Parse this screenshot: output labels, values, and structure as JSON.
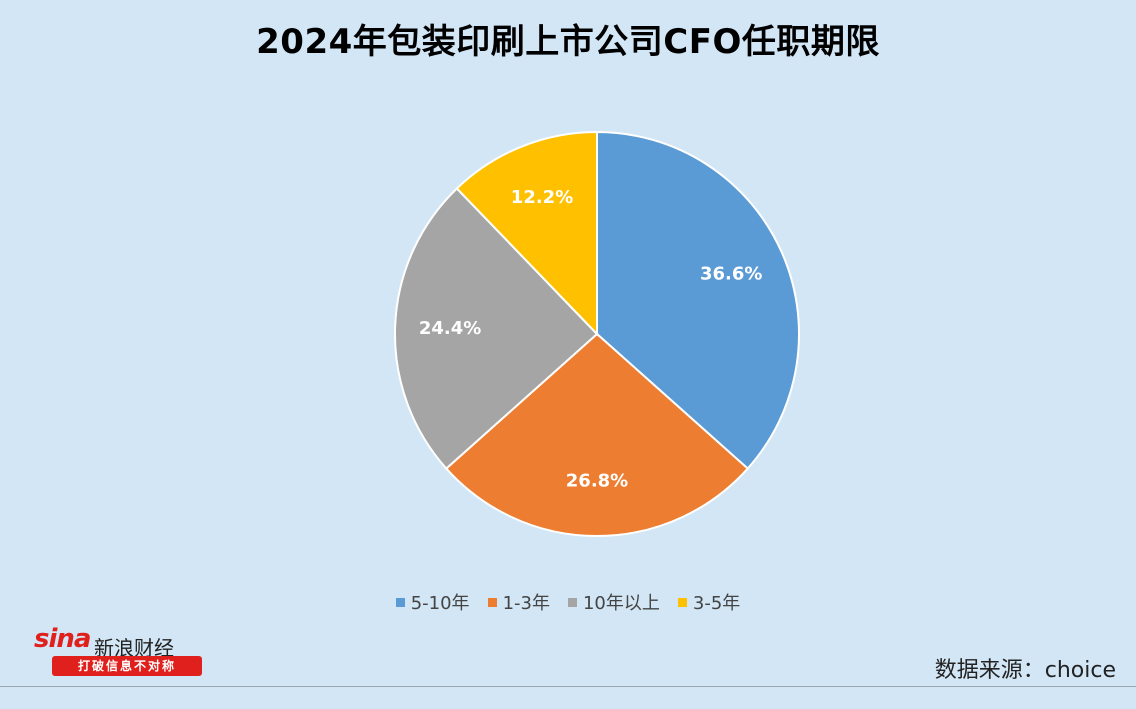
{
  "chart_data": {
    "type": "pie",
    "title": "2024年包装印刷上市公司CFO任职期限",
    "slices": [
      {
        "label": "5-10年",
        "value": 36.6,
        "display": "36.6%",
        "color": "#5b9bd5"
      },
      {
        "label": "1-3年",
        "value": 26.8,
        "display": "26.8%",
        "color": "#ed7d31"
      },
      {
        "label": "10年以上",
        "value": 24.4,
        "display": "24.4%",
        "color": "#a5a5a5"
      },
      {
        "label": "3-5年",
        "value": 12.2,
        "display": "12.2%",
        "color": "#ffc000"
      }
    ],
    "start_angle": "12 o'clock",
    "direction": "clockwise",
    "legend_position": "bottom",
    "background": "#d2e6f5"
  },
  "watermark": {
    "wordmark": "sina",
    "brand": "新浪财经",
    "slogan": "打破信息不对称"
  },
  "source_note": "数据来源：choice"
}
